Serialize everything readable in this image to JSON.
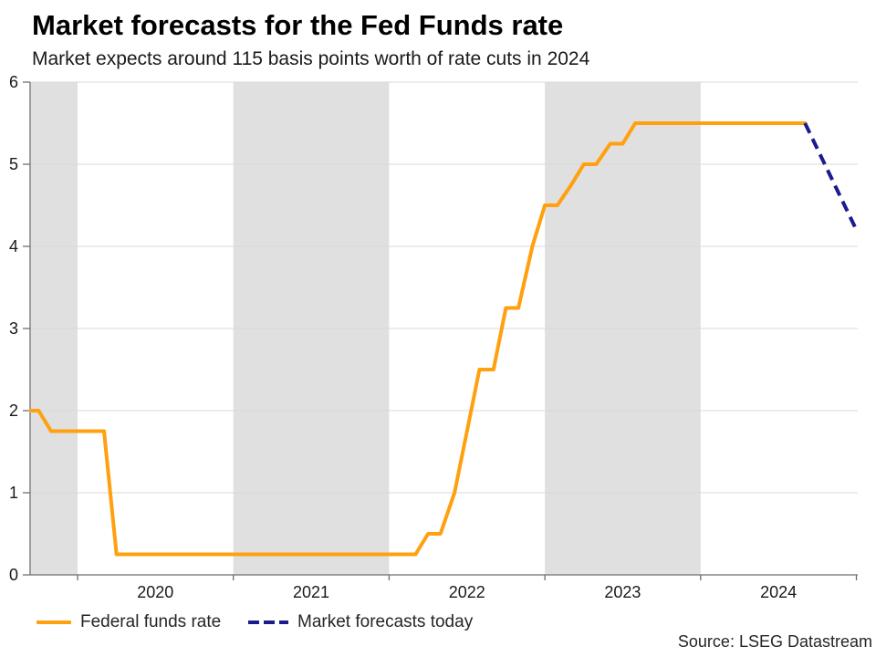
{
  "header": {
    "title": "Market forecasts for the Fed Funds rate",
    "subtitle": "Market expects around 115 basis points worth of rate cuts in 2024"
  },
  "source_label": "Source: LSEG Datastream",
  "legend": [
    {
      "label": "Federal funds rate",
      "color": "#ffa00f",
      "style": "solid"
    },
    {
      "label": "Market forecasts today",
      "color": "#1b1b8f",
      "style": "dashed"
    }
  ],
  "colors": {
    "band": "#e0e0e0",
    "gridline": "#d9d9d9",
    "axis": "#6e6e6e",
    "tick_label": "#1a1a1a",
    "fed_funds_line": "#ffa00f",
    "forecast_line": "#1b1b8f"
  },
  "chart_data": {
    "type": "line",
    "title": "Market forecasts for the Fed Funds rate",
    "subtitle": "Market expects around 115 basis points worth of rate cuts in 2024",
    "source": "Source: LSEG Datastream",
    "x_unit": "decimal year (end-of-month points)",
    "y_unit": "percent",
    "x_axis": {
      "min": 2019.7,
      "max": 2025.0,
      "tick_years": [
        2020,
        2021,
        2022,
        2023,
        2024,
        2025
      ],
      "labels": [
        {
          "text": "2020",
          "t": 2020.5
        },
        {
          "text": "2021",
          "t": 2021.5
        },
        {
          "text": "2022",
          "t": 2022.5
        },
        {
          "text": "2023",
          "t": 2023.5
        },
        {
          "text": "2024",
          "t": 2024.5
        }
      ]
    },
    "y_axis": {
      "min": 0,
      "max": 6,
      "ticks": [
        0,
        1,
        2,
        3,
        4,
        5,
        6
      ]
    },
    "shaded_bands": [
      [
        2019.7,
        2020.0
      ],
      [
        2021.0,
        2022.0
      ],
      [
        2023.0,
        2024.0
      ]
    ],
    "grid": true,
    "legend_position": "bottom-left",
    "series": [
      {
        "name": "Federal funds rate",
        "style": "solid",
        "color": "#ffa00f",
        "points": [
          [
            2019.7,
            2.0
          ],
          [
            2019.75,
            2.0
          ],
          [
            2019.83,
            1.75
          ],
          [
            2020.17,
            1.75
          ],
          [
            2020.25,
            0.25
          ],
          [
            2022.17,
            0.25
          ],
          [
            2022.25,
            0.5
          ],
          [
            2022.33,
            0.5
          ],
          [
            2022.42,
            1.0
          ],
          [
            2022.5,
            1.75
          ],
          [
            2022.58,
            2.5
          ],
          [
            2022.67,
            2.5
          ],
          [
            2022.75,
            3.25
          ],
          [
            2022.83,
            3.25
          ],
          [
            2022.92,
            4.0
          ],
          [
            2023.0,
            4.5
          ],
          [
            2023.08,
            4.5
          ],
          [
            2023.17,
            4.75
          ],
          [
            2023.25,
            5.0
          ],
          [
            2023.33,
            5.0
          ],
          [
            2023.42,
            5.25
          ],
          [
            2023.5,
            5.25
          ],
          [
            2023.58,
            5.5
          ],
          [
            2024.67,
            5.5
          ]
        ]
      },
      {
        "name": "Market forecasts today",
        "style": "dashed",
        "color": "#1b1b8f",
        "points": [
          [
            2024.67,
            5.5
          ],
          [
            2025.0,
            4.2
          ]
        ]
      }
    ]
  }
}
